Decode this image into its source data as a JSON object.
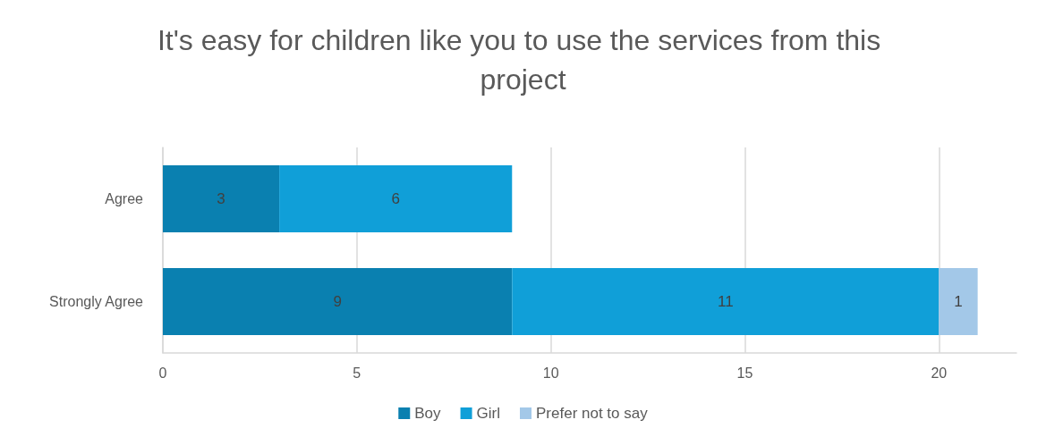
{
  "chart_data": {
    "type": "bar",
    "orientation": "horizontal",
    "stacked": true,
    "title": "It's easy for children like you to use the services from this project",
    "categories": [
      "Agree",
      "Strongly Agree"
    ],
    "series": [
      {
        "name": "Boy",
        "color": "#0a80b0",
        "values": [
          3,
          9
        ]
      },
      {
        "name": "Girl",
        "color": "#109fd8",
        "values": [
          6,
          11
        ]
      },
      {
        "name": "Prefer not to say",
        "color": "#a3c8e8",
        "values": [
          null,
          1
        ]
      }
    ],
    "xlim": [
      0,
      22
    ],
    "xticks": [
      0,
      5,
      10,
      15,
      20
    ],
    "grid": "x",
    "legend": "bottom",
    "data_labels": true
  }
}
